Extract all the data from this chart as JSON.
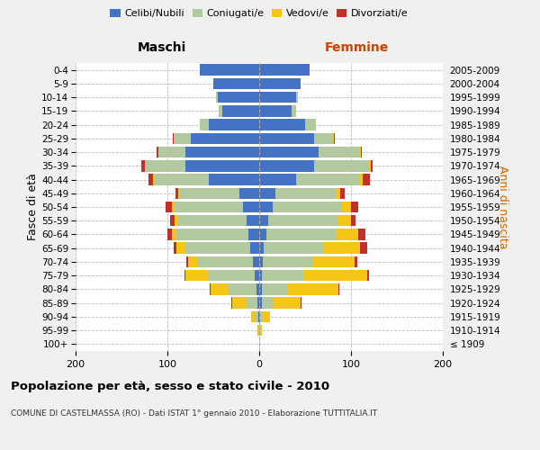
{
  "age_groups": [
    "100+",
    "95-99",
    "90-94",
    "85-89",
    "80-84",
    "75-79",
    "70-74",
    "65-69",
    "60-64",
    "55-59",
    "50-54",
    "45-49",
    "40-44",
    "35-39",
    "30-34",
    "25-29",
    "20-24",
    "15-19",
    "10-14",
    "5-9",
    "0-4"
  ],
  "birth_years": [
    "≤ 1909",
    "1910-1914",
    "1915-1919",
    "1920-1924",
    "1925-1929",
    "1930-1934",
    "1935-1939",
    "1940-1944",
    "1945-1949",
    "1950-1954",
    "1955-1959",
    "1960-1964",
    "1965-1969",
    "1970-1974",
    "1975-1979",
    "1980-1984",
    "1985-1989",
    "1990-1994",
    "1995-1999",
    "2000-2004",
    "2005-2009"
  ],
  "maschi": {
    "celibi": [
      0,
      0,
      1,
      2,
      3,
      5,
      7,
      10,
      12,
      14,
      18,
      22,
      55,
      80,
      80,
      75,
      55,
      40,
      45,
      50,
      65
    ],
    "coniugati": [
      0,
      1,
      3,
      12,
      30,
      50,
      60,
      70,
      78,
      75,
      75,
      65,
      60,
      45,
      30,
      18,
      10,
      4,
      2,
      0,
      0
    ],
    "vedovi": [
      0,
      1,
      5,
      15,
      20,
      25,
      10,
      10,
      5,
      3,
      2,
      1,
      1,
      0,
      0,
      0,
      0,
      0,
      0,
      0,
      0
    ],
    "divorziati": [
      0,
      0,
      0,
      1,
      1,
      1,
      2,
      3,
      5,
      5,
      7,
      3,
      5,
      3,
      2,
      1,
      0,
      0,
      0,
      0,
      0
    ]
  },
  "femmine": {
    "nubili": [
      0,
      0,
      1,
      3,
      3,
      3,
      4,
      5,
      8,
      10,
      15,
      18,
      40,
      60,
      65,
      60,
      50,
      35,
      40,
      45,
      55
    ],
    "coniugate": [
      0,
      1,
      3,
      12,
      28,
      45,
      55,
      65,
      75,
      75,
      75,
      65,
      70,
      60,
      45,
      20,
      12,
      5,
      2,
      0,
      0
    ],
    "vedove": [
      0,
      2,
      8,
      30,
      55,
      70,
      45,
      40,
      25,
      15,
      10,
      5,
      3,
      2,
      1,
      1,
      0,
      0,
      0,
      0,
      0
    ],
    "divorziate": [
      0,
      0,
      0,
      1,
      1,
      2,
      3,
      8,
      8,
      5,
      8,
      5,
      8,
      2,
      1,
      1,
      0,
      0,
      0,
      0,
      0
    ]
  },
  "colors": {
    "celibi_nubili": "#4472C4",
    "coniugati": "#B2C9A0",
    "vedovi": "#F5C518",
    "divorziati": "#C0312B"
  },
  "xlim": 200,
  "title": "Popolazione per età, sesso e stato civile - 2010",
  "subtitle": "COMUNE DI CASTELMASSA (RO) - Dati ISTAT 1° gennaio 2010 - Elaborazione TUTTITALIA.IT",
  "ylabel_left": "Fasce di età",
  "ylabel_right": "Anni di nascita",
  "xlabel_left": "Maschi",
  "xlabel_right": "Femmine",
  "bg_color": "#f0f0f0",
  "plot_bg": "#ffffff"
}
